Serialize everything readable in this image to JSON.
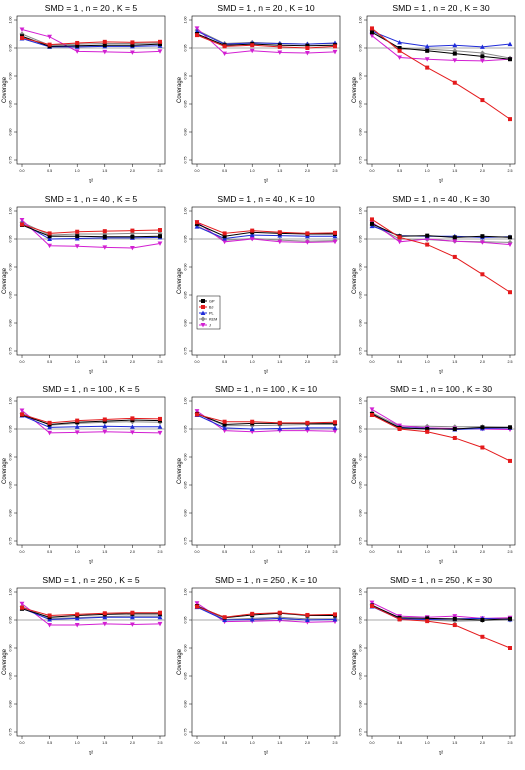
{
  "colors": {
    "GP": "#000000",
    "BJ": "#e41a1c",
    "PL": "#1f2bd8",
    "KEM": "#8a8a8a",
    "J": "#d21fd2"
  },
  "legend": [
    "GP",
    "BJ",
    "PL",
    "KEM",
    "J"
  ],
  "xlabel": "τ²",
  "ylabel": "Coverage",
  "xticks": [
    "0.0",
    "0.5",
    "1.0",
    "1.5",
    "2.0",
    "2.5"
  ],
  "yticks": [
    "0.75",
    "0.80",
    "0.85",
    "0.90",
    "0.95",
    "1.00"
  ],
  "reference_line": 0.95,
  "chart_data": [
    {
      "type": "line",
      "title": "SMD = 1 , n = 20 , K = 5",
      "x": [
        0,
        0.5,
        1.0,
        1.5,
        2.0,
        2.5
      ],
      "xlim": [
        0,
        2.5
      ],
      "ylim": [
        0.75,
        1.0
      ],
      "series": [
        {
          "name": "GP",
          "values": [
            0.971,
            0.953,
            0.954,
            0.955,
            0.955,
            0.957
          ]
        },
        {
          "name": "BJ",
          "values": [
            0.968,
            0.956,
            0.959,
            0.961,
            0.96,
            0.961
          ]
        },
        {
          "name": "PL",
          "values": [
            0.967,
            0.952,
            0.952,
            0.953,
            0.953,
            0.954
          ]
        },
        {
          "name": "KEM",
          "values": [
            0.975,
            0.955,
            0.957,
            0.958,
            0.958,
            0.959
          ]
        },
        {
          "name": "J",
          "values": [
            0.983,
            0.97,
            0.944,
            0.943,
            0.942,
            0.944
          ]
        }
      ]
    },
    {
      "type": "line",
      "title": "SMD = 1 , n = 20 , K = 10",
      "x": [
        0,
        0.5,
        1.0,
        1.5,
        2.0,
        2.5
      ],
      "xlim": [
        0,
        2.5
      ],
      "ylim": [
        0.75,
        1.0
      ],
      "series": [
        {
          "name": "GP",
          "values": [
            0.975,
            0.955,
            0.957,
            0.955,
            0.954,
            0.955
          ]
        },
        {
          "name": "BJ",
          "values": [
            0.973,
            0.953,
            0.955,
            0.952,
            0.95,
            0.953
          ]
        },
        {
          "name": "PL",
          "values": [
            0.98,
            0.957,
            0.959,
            0.958,
            0.957,
            0.959
          ]
        },
        {
          "name": "KEM",
          "values": [
            0.982,
            0.958,
            0.96,
            0.958,
            0.957,
            0.958
          ]
        },
        {
          "name": "J",
          "values": [
            0.985,
            0.94,
            0.945,
            0.942,
            0.941,
            0.943
          ]
        }
      ]
    },
    {
      "type": "line",
      "title": "SMD = 1 , n = 20 , K = 30",
      "x": [
        0,
        0.5,
        1.0,
        1.5,
        2.0,
        2.5
      ],
      "xlim": [
        0,
        2.5
      ],
      "ylim": [
        0.75,
        1.0
      ],
      "series": [
        {
          "name": "GP",
          "values": [
            0.978,
            0.95,
            0.945,
            0.94,
            0.935,
            0.93
          ]
        },
        {
          "name": "BJ",
          "values": [
            0.985,
            0.945,
            0.915,
            0.888,
            0.857,
            0.823
          ]
        },
        {
          "name": "PL",
          "values": [
            0.98,
            0.96,
            0.953,
            0.955,
            0.952,
            0.957
          ]
        },
        {
          "name": "KEM",
          "values": [
            0.982,
            0.948,
            0.948,
            0.945,
            0.941,
            0.932
          ]
        },
        {
          "name": "J",
          "values": [
            0.972,
            0.933,
            0.93,
            0.928,
            0.927,
            0.93
          ]
        }
      ]
    },
    {
      "type": "line",
      "title": "SMD = 1 , n = 40 , K = 5",
      "x": [
        0,
        0.5,
        1.0,
        1.5,
        2.0,
        2.5
      ],
      "xlim": [
        0,
        2.5
      ],
      "ylim": [
        0.75,
        1.0
      ],
      "series": [
        {
          "name": "GP",
          "values": [
            0.975,
            0.955,
            0.955,
            0.954,
            0.954,
            0.955
          ]
        },
        {
          "name": "BJ",
          "values": [
            0.976,
            0.96,
            0.963,
            0.964,
            0.965,
            0.966
          ]
        },
        {
          "name": "PL",
          "values": [
            0.978,
            0.95,
            0.951,
            0.952,
            0.952,
            0.953
          ]
        },
        {
          "name": "KEM",
          "values": [
            0.98,
            0.957,
            0.959,
            0.959,
            0.96,
            0.96
          ]
        },
        {
          "name": "J",
          "values": [
            0.984,
            0.938,
            0.937,
            0.935,
            0.934,
            0.942
          ]
        }
      ]
    },
    {
      "type": "line",
      "title": "SMD = 1 , n = 40 , K = 10",
      "x": [
        0,
        0.5,
        1.0,
        1.5,
        2.0,
        2.5
      ],
      "xlim": [
        0,
        2.5
      ],
      "ylim": [
        0.75,
        1.0
      ],
      "series": [
        {
          "name": "GP",
          "values": [
            0.977,
            0.955,
            0.962,
            0.96,
            0.959,
            0.959
          ]
        },
        {
          "name": "BJ",
          "values": [
            0.98,
            0.96,
            0.965,
            0.962,
            0.96,
            0.961
          ]
        },
        {
          "name": "PL",
          "values": [
            0.972,
            0.951,
            0.957,
            0.956,
            0.955,
            0.955
          ]
        },
        {
          "name": "KEM",
          "values": [
            0.974,
            0.948,
            0.951,
            0.948,
            0.946,
            0.947
          ]
        },
        {
          "name": "J",
          "values": [
            0.98,
            0.945,
            0.95,
            0.945,
            0.944,
            0.945
          ]
        }
      ]
    },
    {
      "type": "line",
      "title": "SMD = 1 , n = 40 , K = 30",
      "x": [
        0,
        0.5,
        1.0,
        1.5,
        2.0,
        2.5
      ],
      "xlim": [
        0,
        2.5
      ],
      "ylim": [
        0.75,
        1.0
      ],
      "series": [
        {
          "name": "GP",
          "values": [
            0.977,
            0.955,
            0.956,
            0.953,
            0.955,
            0.953
          ]
        },
        {
          "name": "BJ",
          "values": [
            0.985,
            0.953,
            0.94,
            0.918,
            0.887,
            0.855
          ]
        },
        {
          "name": "PL",
          "values": [
            0.973,
            0.956,
            0.955,
            0.955,
            0.953,
            0.954
          ]
        },
        {
          "name": "KEM",
          "values": [
            0.975,
            0.95,
            0.949,
            0.946,
            0.945,
            0.944
          ]
        },
        {
          "name": "J",
          "values": [
            0.98,
            0.945,
            0.95,
            0.946,
            0.944,
            0.94
          ]
        }
      ]
    },
    {
      "type": "line",
      "title": "SMD = 1 , n = 100 , K = 5",
      "x": [
        0,
        0.5,
        1.0,
        1.5,
        2.0,
        2.5
      ],
      "xlim": [
        0,
        2.5
      ],
      "ylim": [
        0.75,
        1.0
      ],
      "series": [
        {
          "name": "GP",
          "values": [
            0.975,
            0.958,
            0.962,
            0.964,
            0.966,
            0.965
          ]
        },
        {
          "name": "BJ",
          "values": [
            0.976,
            0.961,
            0.965,
            0.967,
            0.969,
            0.968
          ]
        },
        {
          "name": "PL",
          "values": [
            0.974,
            0.953,
            0.954,
            0.955,
            0.954,
            0.954
          ]
        },
        {
          "name": "KEM",
          "values": [
            0.978,
            0.957,
            0.96,
            0.962,
            0.963,
            0.962
          ]
        },
        {
          "name": "J",
          "values": [
            0.983,
            0.943,
            0.944,
            0.945,
            0.944,
            0.943
          ]
        }
      ]
    },
    {
      "type": "line",
      "title": "SMD = 1 , n = 100 , K = 10",
      "x": [
        0,
        0.5,
        1.0,
        1.5,
        2.0,
        2.5
      ],
      "xlim": [
        0,
        2.5
      ],
      "ylim": [
        0.75,
        1.0
      ],
      "series": [
        {
          "name": "GP",
          "values": [
            0.977,
            0.958,
            0.96,
            0.96,
            0.96,
            0.96
          ]
        },
        {
          "name": "BJ",
          "values": [
            0.976,
            0.963,
            0.963,
            0.961,
            0.961,
            0.962
          ]
        },
        {
          "name": "PL",
          "values": [
            0.975,
            0.952,
            0.95,
            0.951,
            0.952,
            0.952
          ]
        },
        {
          "name": "KEM",
          "values": [
            0.978,
            0.956,
            0.956,
            0.957,
            0.958,
            0.958
          ]
        },
        {
          "name": "J",
          "values": [
            0.982,
            0.947,
            0.945,
            0.947,
            0.947,
            0.946
          ]
        }
      ]
    },
    {
      "type": "line",
      "title": "SMD = 1 , n = 100 , K = 30",
      "x": [
        0,
        0.5,
        1.0,
        1.5,
        2.0,
        2.5
      ],
      "xlim": [
        0,
        2.5
      ],
      "ylim": [
        0.75,
        1.0
      ],
      "series": [
        {
          "name": "GP",
          "values": [
            0.977,
            0.952,
            0.95,
            0.95,
            0.953,
            0.953
          ]
        },
        {
          "name": "BJ",
          "values": [
            0.975,
            0.95,
            0.945,
            0.934,
            0.917,
            0.893
          ]
        },
        {
          "name": "PL",
          "values": [
            0.976,
            0.953,
            0.951,
            0.949,
            0.951,
            0.952
          ]
        },
        {
          "name": "KEM",
          "values": [
            0.979,
            0.955,
            0.955,
            0.954,
            0.954,
            0.953
          ]
        },
        {
          "name": "J",
          "values": [
            0.985,
            0.956,
            0.952,
            0.951,
            0.95,
            0.949
          ]
        }
      ]
    },
    {
      "type": "line",
      "title": "SMD = 1 , n = 250 , K = 5",
      "x": [
        0,
        0.5,
        1.0,
        1.5,
        2.0,
        2.5
      ],
      "xlim": [
        0,
        2.5
      ],
      "ylim": [
        0.75,
        1.0
      ],
      "series": [
        {
          "name": "GP",
          "values": [
            0.97,
            0.955,
            0.958,
            0.96,
            0.961,
            0.961
          ]
        },
        {
          "name": "BJ",
          "values": [
            0.972,
            0.958,
            0.96,
            0.962,
            0.963,
            0.963
          ]
        },
        {
          "name": "PL",
          "values": [
            0.971,
            0.951,
            0.953,
            0.955,
            0.955,
            0.955
          ]
        },
        {
          "name": "KEM",
          "values": [
            0.974,
            0.953,
            0.954,
            0.956,
            0.957,
            0.957
          ]
        },
        {
          "name": "J",
          "values": [
            0.979,
            0.941,
            0.941,
            0.943,
            0.942,
            0.943
          ]
        }
      ]
    },
    {
      "type": "line",
      "title": "SMD = 1 , n = 250 , K = 10",
      "x": [
        0,
        0.5,
        1.0,
        1.5,
        2.0,
        2.5
      ],
      "xlim": [
        0,
        2.5
      ],
      "ylim": [
        0.75,
        1.0
      ],
      "series": [
        {
          "name": "GP",
          "values": [
            0.975,
            0.954,
            0.959,
            0.962,
            0.958,
            0.958
          ]
        },
        {
          "name": "BJ",
          "values": [
            0.974,
            0.955,
            0.961,
            0.963,
            0.959,
            0.96
          ]
        },
        {
          "name": "PL",
          "values": [
            0.973,
            0.95,
            0.951,
            0.953,
            0.95,
            0.951
          ]
        },
        {
          "name": "KEM",
          "values": [
            0.976,
            0.951,
            0.953,
            0.955,
            0.952,
            0.952
          ]
        },
        {
          "name": "J",
          "values": [
            0.98,
            0.947,
            0.948,
            0.949,
            0.946,
            0.947
          ]
        }
      ]
    },
    {
      "type": "line",
      "title": "SMD = 1 , n = 250 , K = 30",
      "x": [
        0,
        0.5,
        1.0,
        1.5,
        2.0,
        2.5
      ],
      "xlim": [
        0,
        2.5
      ],
      "ylim": [
        0.75,
        1.0
      ],
      "series": [
        {
          "name": "GP",
          "values": [
            0.976,
            0.954,
            0.953,
            0.952,
            0.95,
            0.952
          ]
        },
        {
          "name": "BJ",
          "values": [
            0.975,
            0.951,
            0.948,
            0.941,
            0.92,
            0.9
          ]
        },
        {
          "name": "PL",
          "values": [
            0.974,
            0.952,
            0.951,
            0.952,
            0.953,
            0.951
          ]
        },
        {
          "name": "KEM",
          "values": [
            0.977,
            0.953,
            0.95,
            0.948,
            0.949,
            0.95
          ]
        },
        {
          "name": "J",
          "values": [
            0.981,
            0.957,
            0.955,
            0.957,
            0.953,
            0.954
          ]
        }
      ]
    }
  ]
}
